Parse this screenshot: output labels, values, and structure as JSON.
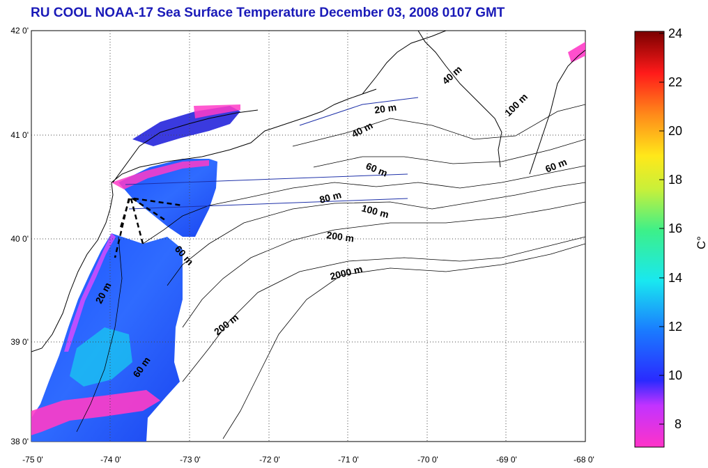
{
  "title": "RU COOL  NOAA-17 Sea Surface Temperature December 03, 2008 0107 GMT",
  "map": {
    "lat_labels": [
      "42 0'",
      "41 0'",
      "40 0'",
      "39 0'",
      "38 0'"
    ],
    "lon_labels": [
      "-75 0'",
      "-74 0'",
      "-73 0'",
      "-72 0'",
      "-71 0'",
      "-70 0'",
      "-69 0'",
      "-68 0'"
    ],
    "depth_labels": [
      {
        "text": "40 m"
      },
      {
        "text": "20 m"
      },
      {
        "text": "100 m"
      },
      {
        "text": "40 m"
      },
      {
        "text": "60 m"
      },
      {
        "text": "60 m"
      },
      {
        "text": "80 m"
      },
      {
        "text": "100 m"
      },
      {
        "text": "200 m"
      },
      {
        "text": "60 m"
      },
      {
        "text": "2000 m"
      },
      {
        "text": "20 m"
      },
      {
        "text": "200 m"
      },
      {
        "text": "60 m"
      }
    ]
  },
  "colorbar": {
    "ticks": [
      "24",
      "22",
      "20",
      "18",
      "16",
      "14",
      "12",
      "10",
      "8"
    ],
    "unit": "C°",
    "min": 7,
    "max": 24
  },
  "colors": {
    "title": "#1a1ab8",
    "land_outline": "#000000",
    "track_line": "#1c2fa8"
  }
}
